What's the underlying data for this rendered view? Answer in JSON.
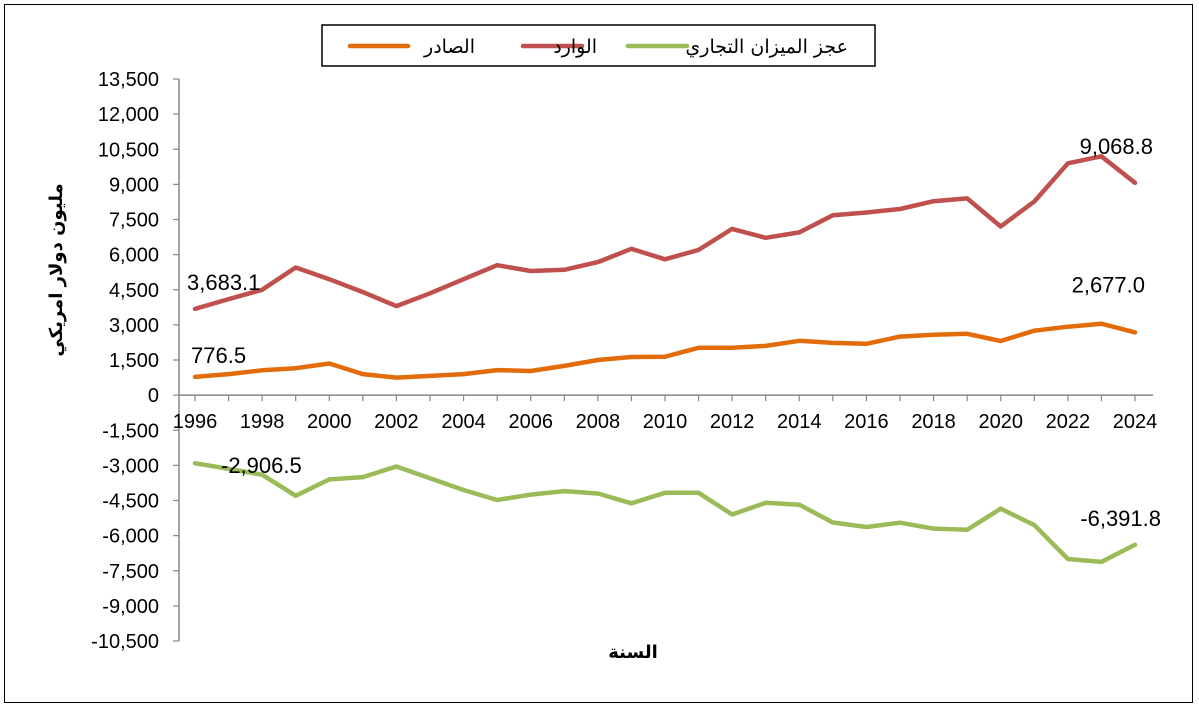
{
  "chart_data": {
    "type": "line",
    "xlabel": "السنة",
    "ylabel": "مليون دولار امريكي",
    "ylim": [
      -10500,
      13500
    ],
    "xlim": [
      1996,
      2024
    ],
    "ytick_step": 1500,
    "xticks": [
      1996,
      1998,
      2000,
      2002,
      2004,
      2006,
      2008,
      2010,
      2012,
      2014,
      2016,
      2018,
      2020,
      2022,
      2024
    ],
    "grid": false,
    "legend_position": "top-center",
    "x": [
      1996,
      1997,
      1998,
      1999,
      2000,
      2001,
      2002,
      2003,
      2004,
      2005,
      2006,
      2007,
      2008,
      2009,
      2010,
      2011,
      2012,
      2013,
      2014,
      2015,
      2016,
      2017,
      2018,
      2019,
      2020,
      2021,
      2022,
      2023,
      2024
    ],
    "series": [
      {
        "name": "الصادر",
        "color": "#e36c0a",
        "values": [
          776.5,
          900,
          1060,
          1150,
          1350,
          900,
          750,
          820,
          900,
          1070,
          1030,
          1250,
          1500,
          1630,
          1640,
          2020,
          2020,
          2100,
          2320,
          2230,
          2190,
          2500,
          2580,
          2620,
          2310,
          2750,
          2920,
          3050,
          2677.0
        ]
      },
      {
        "name": "الوارد",
        "color": "#c0504d",
        "values": [
          3683.1,
          4100,
          4500,
          5450,
          4950,
          4400,
          3800,
          4350,
          4950,
          5550,
          5300,
          5350,
          5680,
          6250,
          5800,
          6200,
          7100,
          6720,
          6950,
          7680,
          7800,
          7950,
          8280,
          8400,
          7200,
          8270,
          9900,
          10200,
          9068.8
        ]
      },
      {
        "name": "عجز الميزان التجاري",
        "color": "#9bbb59",
        "values": [
          -2906.5,
          -3150,
          -3400,
          -4300,
          -3600,
          -3500,
          -3050,
          -3550,
          -4050,
          -4480,
          -4250,
          -4100,
          -4200,
          -4620,
          -4170,
          -4170,
          -5100,
          -4600,
          -4680,
          -5440,
          -5630,
          -5450,
          -5700,
          -5750,
          -4850,
          -5550,
          -7000,
          -7120,
          -6391.8
        ]
      }
    ],
    "data_labels": [
      {
        "series": 0,
        "index": 0,
        "text": "776.5"
      },
      {
        "series": 0,
        "index": 28,
        "text": "2,677.0"
      },
      {
        "series": 1,
        "index": 0,
        "text": "3,683.1"
      },
      {
        "series": 1,
        "index": 28,
        "text": "9,068.8"
      },
      {
        "series": 2,
        "index": 0,
        "text": "-2,906.5"
      },
      {
        "series": 2,
        "index": 28,
        "text": "-6,391.8"
      }
    ]
  }
}
